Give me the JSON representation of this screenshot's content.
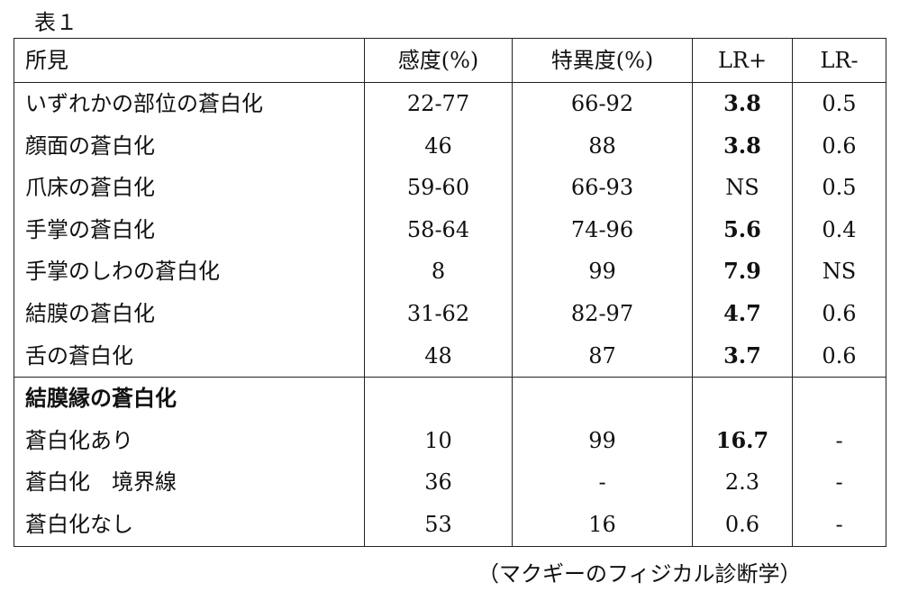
{
  "caption": "表１",
  "table": {
    "headers": [
      "所見",
      "感度(%)",
      "特異度(%)",
      "LR+",
      "LR-"
    ],
    "group1_rows": [
      {
        "finding": "いずれかの部位の蒼白化",
        "sensitivity": "22-77",
        "specificity": "66-92",
        "lr_plus": "3.8",
        "lr_minus": "0.5"
      },
      {
        "finding": "顔面の蒼白化",
        "sensitivity": "46",
        "specificity": "88",
        "lr_plus": "3.8",
        "lr_minus": "0.6"
      },
      {
        "finding": "爪床の蒼白化",
        "sensitivity": "59-60",
        "specificity": "66-93",
        "lr_plus": "NS",
        "lr_minus": "0.5"
      },
      {
        "finding": "手掌の蒼白化",
        "sensitivity": "58-64",
        "specificity": "74-96",
        "lr_plus": "5.6",
        "lr_minus": "0.4"
      },
      {
        "finding": "手掌のしわの蒼白化",
        "sensitivity": "8",
        "specificity": "99",
        "lr_plus": "7.9",
        "lr_minus": "NS"
      },
      {
        "finding": "結膜の蒼白化",
        "sensitivity": "31-62",
        "specificity": "82-97",
        "lr_plus": "4.7",
        "lr_minus": "0.6"
      },
      {
        "finding": "舌の蒼白化",
        "sensitivity": "48",
        "specificity": "87",
        "lr_plus": "3.7",
        "lr_minus": "0.6"
      }
    ],
    "group2_title": "結膜縁の蒼白化",
    "group2_rows": [
      {
        "finding": "蒼白化あり",
        "sensitivity": "10",
        "specificity": "99",
        "lr_plus": "16.7",
        "lr_minus": "-"
      },
      {
        "finding": "蒼白化　境界線",
        "sensitivity": "36",
        "specificity": "-",
        "lr_plus": "2.3",
        "lr_minus": "-"
      },
      {
        "finding": "蒼白化なし",
        "sensitivity": "53",
        "specificity": "16",
        "lr_plus": "0.6",
        "lr_minus": "-"
      }
    ]
  },
  "source": "（マクギーのフィジカル診断学）"
}
